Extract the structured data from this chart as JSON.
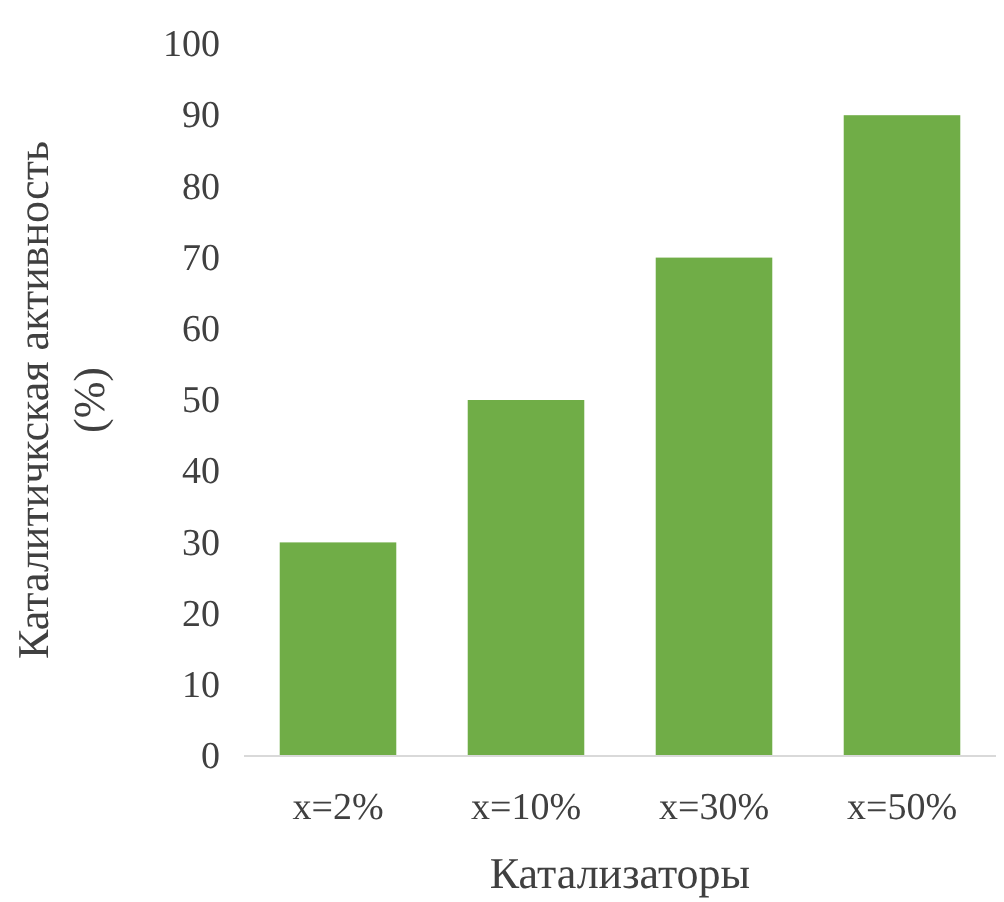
{
  "chart_data": {
    "type": "bar",
    "xlabel": "Катализаторы",
    "ylabel": "Каталитичкская активность (%)",
    "categories": [
      "x=2%",
      "x=10%",
      "x=30%",
      "x=50%"
    ],
    "values": [
      30,
      50,
      70,
      90
    ],
    "color": "#70ad47",
    "ylim": [
      0,
      100
    ],
    "yticks": [
      0,
      10,
      20,
      30,
      40,
      50,
      60,
      70,
      80,
      90,
      100
    ],
    "grid": false
  }
}
